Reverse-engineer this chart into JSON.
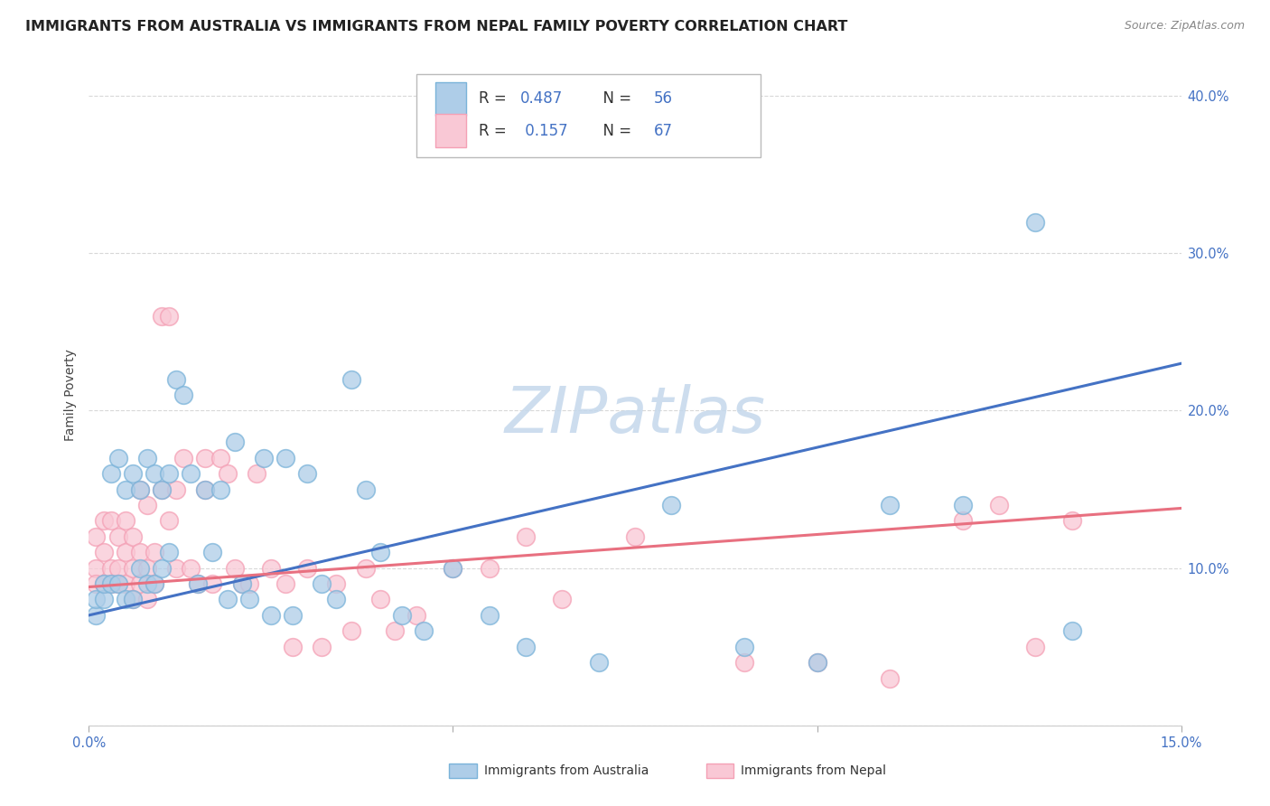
{
  "title": "IMMIGRANTS FROM AUSTRALIA VS IMMIGRANTS FROM NEPAL FAMILY POVERTY CORRELATION CHART",
  "source": "Source: ZipAtlas.com",
  "ylabel": "Family Poverty",
  "watermark": "ZIPatlas",
  "australia": {
    "R": 0.487,
    "N": 56,
    "color": "#7ab3d9",
    "color_fill": "#aecde8",
    "x": [
      0.001,
      0.001,
      0.002,
      0.002,
      0.003,
      0.003,
      0.004,
      0.004,
      0.005,
      0.005,
      0.006,
      0.006,
      0.007,
      0.007,
      0.008,
      0.008,
      0.009,
      0.009,
      0.01,
      0.01,
      0.011,
      0.011,
      0.012,
      0.013,
      0.014,
      0.015,
      0.016,
      0.017,
      0.018,
      0.019,
      0.02,
      0.021,
      0.022,
      0.024,
      0.025,
      0.027,
      0.028,
      0.03,
      0.032,
      0.034,
      0.036,
      0.038,
      0.04,
      0.043,
      0.046,
      0.05,
      0.055,
      0.06,
      0.07,
      0.08,
      0.09,
      0.1,
      0.11,
      0.12,
      0.13,
      0.135
    ],
    "y": [
      0.07,
      0.08,
      0.08,
      0.09,
      0.09,
      0.16,
      0.09,
      0.17,
      0.08,
      0.15,
      0.08,
      0.16,
      0.1,
      0.15,
      0.09,
      0.17,
      0.09,
      0.16,
      0.1,
      0.15,
      0.11,
      0.16,
      0.22,
      0.21,
      0.16,
      0.09,
      0.15,
      0.11,
      0.15,
      0.08,
      0.18,
      0.09,
      0.08,
      0.17,
      0.07,
      0.17,
      0.07,
      0.16,
      0.09,
      0.08,
      0.22,
      0.15,
      0.11,
      0.07,
      0.06,
      0.1,
      0.07,
      0.05,
      0.04,
      0.14,
      0.05,
      0.04,
      0.14,
      0.14,
      0.32,
      0.06
    ]
  },
  "nepal": {
    "R": 0.157,
    "N": 67,
    "color": "#f4a0b5",
    "color_fill": "#f9c8d5",
    "x": [
      0.001,
      0.001,
      0.001,
      0.002,
      0.002,
      0.002,
      0.003,
      0.003,
      0.003,
      0.004,
      0.004,
      0.004,
      0.005,
      0.005,
      0.005,
      0.006,
      0.006,
      0.006,
      0.007,
      0.007,
      0.007,
      0.008,
      0.008,
      0.008,
      0.009,
      0.009,
      0.01,
      0.01,
      0.011,
      0.011,
      0.012,
      0.012,
      0.013,
      0.014,
      0.015,
      0.016,
      0.016,
      0.017,
      0.018,
      0.019,
      0.02,
      0.021,
      0.022,
      0.023,
      0.025,
      0.027,
      0.028,
      0.03,
      0.032,
      0.034,
      0.036,
      0.038,
      0.04,
      0.042,
      0.045,
      0.05,
      0.055,
      0.06,
      0.065,
      0.075,
      0.09,
      0.1,
      0.11,
      0.12,
      0.125,
      0.13,
      0.135
    ],
    "y": [
      0.12,
      0.1,
      0.09,
      0.11,
      0.09,
      0.13,
      0.1,
      0.09,
      0.13,
      0.1,
      0.12,
      0.09,
      0.11,
      0.09,
      0.13,
      0.1,
      0.08,
      0.12,
      0.11,
      0.09,
      0.15,
      0.1,
      0.08,
      0.14,
      0.11,
      0.09,
      0.15,
      0.26,
      0.13,
      0.26,
      0.15,
      0.1,
      0.17,
      0.1,
      0.09,
      0.17,
      0.15,
      0.09,
      0.17,
      0.16,
      0.1,
      0.09,
      0.09,
      0.16,
      0.1,
      0.09,
      0.05,
      0.1,
      0.05,
      0.09,
      0.06,
      0.1,
      0.08,
      0.06,
      0.07,
      0.1,
      0.1,
      0.12,
      0.08,
      0.12,
      0.04,
      0.04,
      0.03,
      0.13,
      0.14,
      0.05,
      0.13
    ]
  },
  "xmin": 0.0,
  "xmax": 0.15,
  "ymin": 0.0,
  "ymax": 0.42,
  "yticks": [
    0.0,
    0.1,
    0.2,
    0.3,
    0.4
  ],
  "ytick_labels": [
    "",
    "10.0%",
    "20.0%",
    "30.0%",
    "40.0%"
  ],
  "title_fontsize": 11.5,
  "axis_label_fontsize": 10,
  "tick_fontsize": 10.5,
  "legend_fontsize": 12,
  "watermark_fontsize": 52,
  "watermark_color": "#c5d8ec",
  "background_color": "#ffffff",
  "grid_color": "#d8d8d8",
  "blue_line_color": "#4472c4",
  "pink_line_color": "#e87080",
  "aus_line_y0": 0.07,
  "aus_line_y1": 0.23,
  "nep_line_y0": 0.088,
  "nep_line_y1": 0.138
}
